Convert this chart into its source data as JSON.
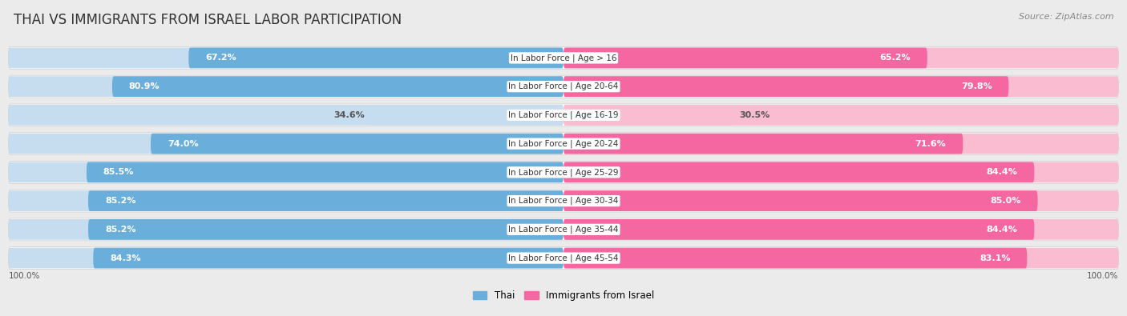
{
  "title": "THAI VS IMMIGRANTS FROM ISRAEL LABOR PARTICIPATION",
  "source": "Source: ZipAtlas.com",
  "categories": [
    "In Labor Force | Age > 16",
    "In Labor Force | Age 20-64",
    "In Labor Force | Age 16-19",
    "In Labor Force | Age 20-24",
    "In Labor Force | Age 25-29",
    "In Labor Force | Age 30-34",
    "In Labor Force | Age 35-44",
    "In Labor Force | Age 45-54"
  ],
  "thai_values": [
    67.2,
    80.9,
    34.6,
    74.0,
    85.5,
    85.2,
    85.2,
    84.3
  ],
  "israel_values": [
    65.2,
    79.8,
    30.5,
    71.6,
    84.4,
    85.0,
    84.4,
    83.1
  ],
  "thai_color_strong": "#6aaedb",
  "thai_color_light": "#c5ddef",
  "israel_color_strong": "#f567a0",
  "israel_color_light": "#f9bcd0",
  "row_bg_color": "#ffffff",
  "outer_bg_color": "#ebebeb",
  "threshold": 50,
  "max_value": 100.0,
  "legend_thai": "Thai",
  "legend_israel": "Immigrants from Israel",
  "title_fontsize": 12,
  "source_fontsize": 8,
  "label_fontsize": 8,
  "cat_fontsize": 7.5
}
